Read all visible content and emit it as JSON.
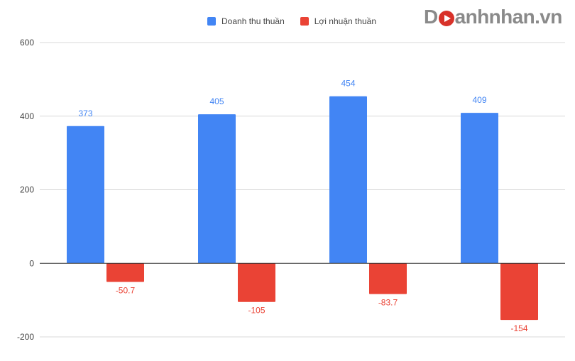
{
  "logo": {
    "first": "D",
    "rest": "anhnhan.vn",
    "mark_color": "#d8322a"
  },
  "chart_data": {
    "type": "bar",
    "categories": [
      "",
      "",
      "",
      ""
    ],
    "ylim": [
      -200,
      600
    ],
    "yticks": [
      600,
      400,
      200,
      0,
      -200
    ],
    "grid": true,
    "legend_position": "top",
    "series": [
      {
        "name": "Doanh thu thuần",
        "color": "#4285f4",
        "values": [
          373,
          405,
          454,
          409
        ],
        "labels": [
          "373",
          "405",
          "454",
          "409"
        ]
      },
      {
        "name": "Lợi nhuận thuần",
        "color": "#ea4335",
        "values": [
          -50.7,
          -105,
          -83.7,
          -154
        ],
        "labels": [
          "-50.7",
          "-105",
          "-83.7",
          "-154"
        ]
      }
    ]
  }
}
